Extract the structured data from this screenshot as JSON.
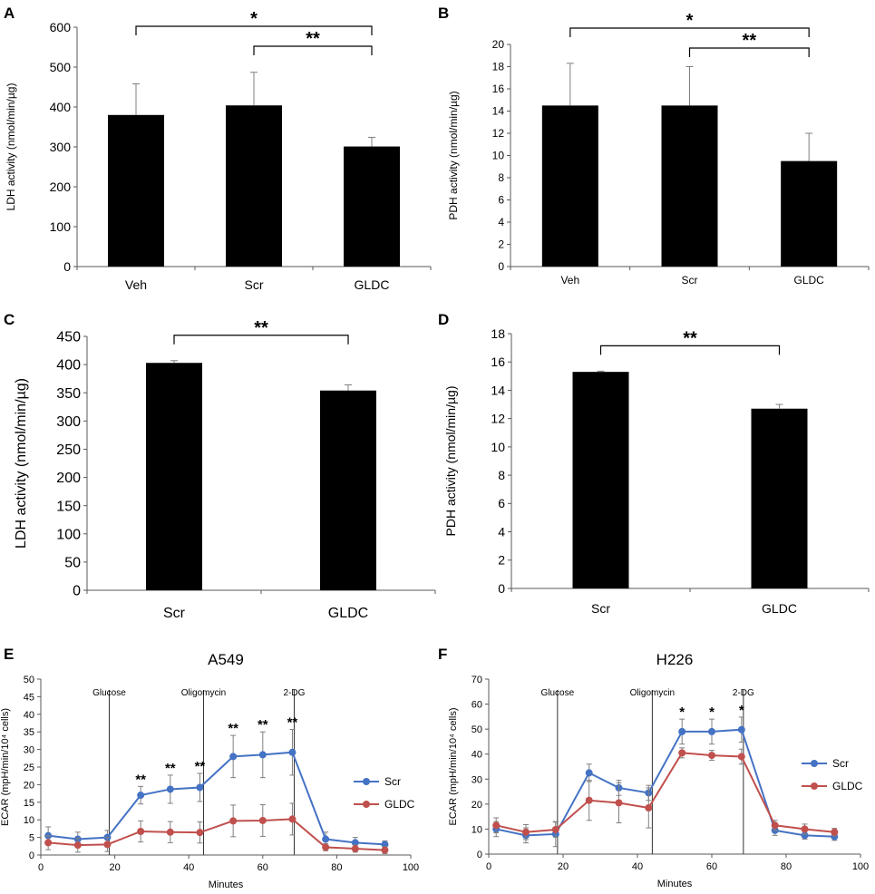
{
  "colors": {
    "bar": "#000000",
    "scr": "#4472C4",
    "gldc": "#C0504D",
    "axis": "#595959"
  },
  "chart_data": [
    {
      "panel": "A",
      "type": "bar",
      "ylabel": "LDH activity (nmol/min/µg)",
      "categories": [
        "Veh",
        "Scr",
        "GLDC"
      ],
      "values": [
        380,
        404,
        301
      ],
      "errors": [
        78,
        83,
        23
      ],
      "ylim": [
        0,
        600
      ],
      "yticks": [
        "0",
        "100",
        "200",
        "300",
        "400",
        "500",
        "600"
      ],
      "brackets": [
        {
          "from": 0,
          "to": 2,
          "label": "*"
        },
        {
          "from": 1,
          "to": 2,
          "label": "**"
        }
      ]
    },
    {
      "panel": "B",
      "type": "bar",
      "ylabel": "PDH activity (nmol/min/µg)",
      "categories": [
        "Veh",
        "Scr",
        "GLDC"
      ],
      "values": [
        14.5,
        14.5,
        9.5
      ],
      "errors": [
        3.8,
        3.5,
        2.5
      ],
      "ylim": [
        0,
        20
      ],
      "yticks": [
        "0",
        "2",
        "4",
        "6",
        "8",
        "10",
        "12",
        "14",
        "16",
        "18",
        "20"
      ],
      "brackets": [
        {
          "from": 0,
          "to": 2,
          "label": "*"
        },
        {
          "from": 1,
          "to": 2,
          "label": "**"
        }
      ]
    },
    {
      "panel": "C",
      "type": "bar",
      "ylabel": "LDH activity (nmol/min/µg)",
      "categories": [
        "Scr",
        "GLDC"
      ],
      "values": [
        403,
        354
      ],
      "errors": [
        4,
        10
      ],
      "ylim": [
        0,
        450
      ],
      "yticks": [
        "0",
        "50",
        "100",
        "150",
        "200",
        "250",
        "300",
        "350",
        "400",
        "450"
      ],
      "brackets": [
        {
          "from": 0,
          "to": 1,
          "label": "**"
        }
      ]
    },
    {
      "panel": "D",
      "type": "bar",
      "ylabel": "PDH activity (nmol/min/µg)",
      "categories": [
        "Scr",
        "GLDC"
      ],
      "values": [
        15.3,
        12.7
      ],
      "errors": [
        0.05,
        0.3
      ],
      "ylim": [
        0,
        18
      ],
      "yticks": [
        "0",
        "2",
        "4",
        "6",
        "8",
        "10",
        "12",
        "14",
        "16",
        "18"
      ],
      "brackets": [
        {
          "from": 0,
          "to": 1,
          "label": "**"
        }
      ]
    },
    {
      "panel": "E",
      "type": "line",
      "title": "A549",
      "xlabel": "Minutes",
      "ylabel": "ECAR (mpH/min/10⁴ cells)",
      "xlim": [
        0,
        100
      ],
      "ylim": [
        0,
        50
      ],
      "xticks": [
        "0",
        "20",
        "40",
        "60",
        "80",
        "100"
      ],
      "yticks": [
        "0",
        "5",
        "10",
        "15",
        "20",
        "25",
        "30",
        "35",
        "40",
        "45",
        "50"
      ],
      "x": [
        2,
        10,
        18,
        27,
        35,
        43,
        52,
        60,
        68,
        77,
        85,
        93
      ],
      "series": [
        {
          "name": "Scr",
          "values": [
            5.5,
            4.5,
            5,
            17,
            18.7,
            19.2,
            28,
            28.5,
            29.2,
            4.5,
            3.5,
            3.0
          ],
          "errors": [
            2.5,
            2,
            2,
            2.5,
            4,
            4,
            6,
            6.5,
            6.5,
            2,
            1.5,
            1
          ]
        },
        {
          "name": "GLDC",
          "values": [
            3.5,
            2.8,
            3,
            6.7,
            6.5,
            6.4,
            9.7,
            9.8,
            10.2,
            2.2,
            1.8,
            1.4
          ],
          "errors": [
            2,
            2,
            2,
            3,
            3,
            3,
            4.5,
            4.5,
            4.5,
            1,
            1,
            1
          ]
        }
      ],
      "vlines": [
        {
          "x": 18.5,
          "label": "Glucose"
        },
        {
          "x": 44,
          "label": "Oligomycin"
        },
        {
          "x": 68.5,
          "label": "2-DG"
        }
      ],
      "stars": [
        {
          "x": 27,
          "label": "**"
        },
        {
          "x": 35,
          "label": "**"
        },
        {
          "x": 43,
          "label": "**"
        },
        {
          "x": 52,
          "label": "**"
        },
        {
          "x": 60,
          "label": "**"
        },
        {
          "x": 68,
          "label": "**"
        }
      ]
    },
    {
      "panel": "F",
      "type": "line",
      "title": "H226",
      "xlabel": "Minutes",
      "ylabel": "ECAR (mpH/min/10⁴ cells)",
      "xlim": [
        0,
        100
      ],
      "ylim": [
        0,
        70
      ],
      "xticks": [
        "0",
        "20",
        "40",
        "60",
        "80",
        "100"
      ],
      "yticks": [
        "0",
        "10",
        "20",
        "30",
        "40",
        "50",
        "60",
        "70"
      ],
      "x": [
        2,
        10,
        18,
        27,
        35,
        43,
        52,
        60,
        68,
        77,
        85,
        93
      ],
      "series": [
        {
          "name": "Scr",
          "values": [
            10,
            7.5,
            8,
            32.5,
            26.5,
            24.5,
            49,
            49,
            49.8,
            9.5,
            7.5,
            7
          ],
          "errors": [
            3,
            3,
            5,
            3.5,
            3,
            3,
            5,
            5,
            5,
            2,
            1.5,
            1.5
          ]
        },
        {
          "name": "GLDC",
          "values": [
            11.5,
            8.8,
            9.8,
            21.5,
            20.5,
            18.5,
            40.5,
            39.5,
            39,
            11.5,
            10,
            8.8
          ],
          "errors": [
            3,
            3,
            3,
            8,
            8,
            8,
            2,
            2,
            3,
            2,
            2,
            1.5
          ]
        }
      ],
      "vlines": [
        {
          "x": 18.5,
          "label": "Glucose"
        },
        {
          "x": 44,
          "label": "Oligomycin"
        },
        {
          "x": 68.5,
          "label": "2-DG"
        }
      ],
      "stars": [
        {
          "x": 52,
          "label": "*"
        },
        {
          "x": 60,
          "label": "*"
        },
        {
          "x": 68,
          "label": "*"
        }
      ]
    }
  ],
  "panels": {
    "A": "A",
    "B": "B",
    "C": "C",
    "D": "D",
    "E": "E",
    "F": "F"
  }
}
